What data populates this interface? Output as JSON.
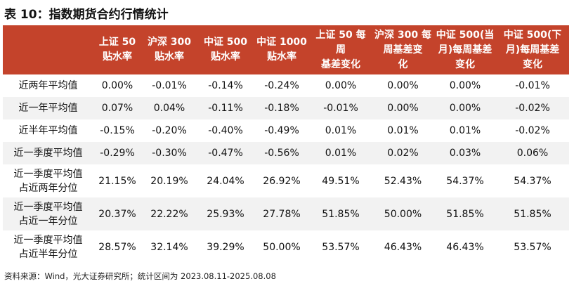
{
  "header": {
    "title": "表 10：指数期货合约行情统计"
  },
  "table": {
    "columns": [
      [
        "上证 50",
        "贴水率"
      ],
      [
        "沪深 300",
        "贴水率"
      ],
      [
        "中证 500",
        "贴水率"
      ],
      [
        "中证 1000",
        "贴水率"
      ],
      [
        "上证 50 每周",
        "基差变化"
      ],
      [
        "沪深 300 每",
        "周基差变",
        "化"
      ],
      [
        "中证 500(当",
        "月)每周基差",
        "变化"
      ],
      [
        "中证 500(下",
        "月)每周基差",
        "变化"
      ]
    ],
    "rows": [
      {
        "label": [
          "近两年平均值"
        ],
        "values": [
          "0.00%",
          "-0.01%",
          "-0.14%",
          "-0.24%",
          "0.00%",
          "0.00%",
          "0.00%",
          "-0.01%"
        ]
      },
      {
        "label": [
          "近一年平均值"
        ],
        "values": [
          "0.07%",
          "0.04%",
          "-0.11%",
          "-0.18%",
          "-0.01%",
          "0.00%",
          "0.00%",
          "-0.02%"
        ]
      },
      {
        "label": [
          "近半年平均值"
        ],
        "values": [
          "-0.15%",
          "-0.20%",
          "-0.40%",
          "-0.49%",
          "0.01%",
          "0.01%",
          "0.01%",
          "-0.02%"
        ]
      },
      {
        "label": [
          "近一季度平均值"
        ],
        "values": [
          "-0.29%",
          "-0.30%",
          "-0.47%",
          "-0.56%",
          "0.01%",
          "0.02%",
          "0.03%",
          "0.06%"
        ]
      },
      {
        "label": [
          "近一季度平均值",
          "占近两年分位"
        ],
        "values": [
          "21.15%",
          "20.19%",
          "24.04%",
          "26.92%",
          "49.51%",
          "52.43%",
          "54.37%",
          "54.37%"
        ]
      },
      {
        "label": [
          "近一季度平均值",
          "占近一年分位"
        ],
        "values": [
          "20.37%",
          "22.22%",
          "25.93%",
          "27.78%",
          "51.85%",
          "50.00%",
          "51.85%",
          "51.85%"
        ]
      },
      {
        "label": [
          "近一季度平均值",
          "占近半年分位"
        ],
        "values": [
          "28.57%",
          "32.14%",
          "39.29%",
          "50.00%",
          "53.57%",
          "46.43%",
          "46.43%",
          "53.57%"
        ]
      }
    ]
  },
  "footer": {
    "source": "资料来源：Wind，光大证券研究所；统计区间为 2023.08.11-2025.08.08"
  }
}
